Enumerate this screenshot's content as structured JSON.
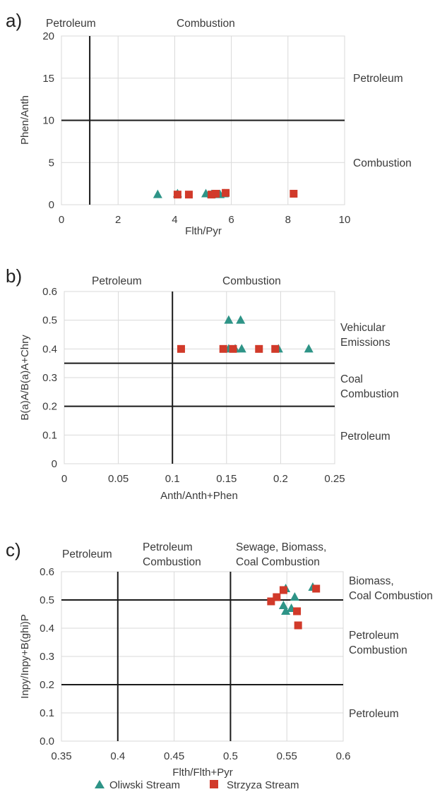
{
  "colors": {
    "oliwski": "#2e9487",
    "strzyza": "#d13a2a"
  },
  "legend": {
    "oliwski_label": "Oliwski Stream",
    "strzyza_label": "Strzyza Stream"
  },
  "chart_data": [
    {
      "type": "scatter",
      "panel_label": "a)",
      "xlabel": "Flth/Pyr",
      "ylabel": "Phen/Anth",
      "xlim": [
        0,
        10
      ],
      "ylim": [
        0,
        20
      ],
      "xticks": [
        "0",
        "2",
        "4",
        "6",
        "8",
        "10"
      ],
      "yticks": [
        "0",
        "5",
        "10",
        "15",
        "20"
      ],
      "grid": true,
      "thresholds": {
        "x": [
          1
        ],
        "y": [
          10
        ]
      },
      "region_labels": {
        "top_left": "Petroleum",
        "top_right": "Combustion",
        "right_upper": "Petroleum",
        "right_lower": "Combustion"
      },
      "series": [
        {
          "name": "Oliwski Stream",
          "marker": "triangle",
          "x": [
            3.4,
            4.1,
            5.1,
            5.3,
            5.6,
            5.75
          ],
          "y": [
            1.2,
            1.3,
            1.3,
            1.2,
            1.2,
            1.3
          ]
        },
        {
          "name": "Strzyza Stream",
          "marker": "square",
          "x": [
            4.1,
            4.5,
            5.3,
            5.45,
            5.8,
            8.2
          ],
          "y": [
            1.2,
            1.2,
            1.2,
            1.3,
            1.4,
            1.3
          ]
        }
      ]
    },
    {
      "type": "scatter",
      "panel_label": "b)",
      "xlabel": "Anth/Anth+Phen",
      "ylabel": "B(a)A/B(a)A+Chry",
      "xlim": [
        0,
        0.25
      ],
      "ylim": [
        0,
        0.6
      ],
      "xticks": [
        "0",
        "0.05",
        "0.1",
        "0.15",
        "0.2",
        "0.25"
      ],
      "yticks": [
        "0",
        "0.1",
        "0.2",
        "0.3",
        "0.4",
        "0.5",
        "0.6"
      ],
      "grid": true,
      "thresholds": {
        "x": [
          0.1
        ],
        "y": [
          0.2,
          0.35
        ]
      },
      "region_labels": {
        "top_left": "Petroleum",
        "top_right": "Combustion",
        "right_top": [
          "Vehicular",
          "Emissions"
        ],
        "right_middle": [
          "Coal",
          "Combustion"
        ],
        "right_bottom": "Petroleum"
      },
      "series": [
        {
          "name": "Oliwski Stream",
          "marker": "triangle",
          "x": [
            0.152,
            0.163,
            0.152,
            0.158,
            0.164,
            0.198,
            0.226
          ],
          "y": [
            0.5,
            0.5,
            0.4,
            0.4,
            0.4,
            0.4,
            0.4
          ]
        },
        {
          "name": "Strzyza Stream",
          "marker": "square",
          "x": [
            0.108,
            0.147,
            0.156,
            0.18,
            0.195
          ],
          "y": [
            0.4,
            0.4,
            0.4,
            0.4,
            0.4
          ]
        }
      ]
    },
    {
      "type": "scatter",
      "panel_label": "c)",
      "xlabel": "Flth/Flth+Pyr",
      "ylabel": "Inpy/Inpy+B(ghi)P",
      "xlim": [
        0.35,
        0.6
      ],
      "ylim": [
        0,
        0.6
      ],
      "xticks": [
        "0.35",
        "0.4",
        "0.45",
        "0.5",
        "0.55",
        "0.6"
      ],
      "yticks": [
        "0.0",
        "0.1",
        "0.2",
        "0.3",
        "0.4",
        "0.5",
        "0.6"
      ],
      "grid": true,
      "thresholds": {
        "x": [
          0.4,
          0.5
        ],
        "y": [
          0.2,
          0.5
        ]
      },
      "region_labels": {
        "top_left": "Petroleum",
        "top_middle": [
          "Petroleum",
          "Combustion"
        ],
        "top_right": [
          "Sewage, Biomass,",
          "Coal Combustion"
        ],
        "right_top": [
          "Biomass,",
          "Coal Combustion"
        ],
        "right_middle": [
          "Petroleum",
          "Combustion"
        ],
        "right_bottom": "Petroleum"
      },
      "series": [
        {
          "name": "Oliwski Stream",
          "marker": "triangle",
          "x": [
            0.549,
            0.557,
            0.547,
            0.549,
            0.554,
            0.573
          ],
          "y": [
            0.54,
            0.51,
            0.48,
            0.46,
            0.47,
            0.545
          ]
        },
        {
          "name": "Strzyza Stream",
          "marker": "square",
          "x": [
            0.536,
            0.541,
            0.547,
            0.559,
            0.56,
            0.576
          ],
          "y": [
            0.495,
            0.51,
            0.535,
            0.46,
            0.41,
            0.54
          ]
        }
      ]
    }
  ]
}
